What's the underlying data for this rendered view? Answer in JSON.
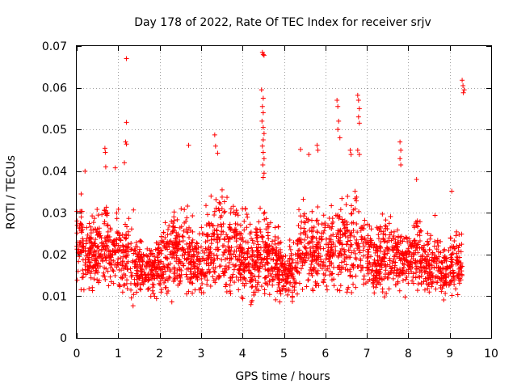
{
  "chart_data": {
    "type": "scatter",
    "title": "Day 178 of 2022, Rate Of TEC Index for receiver srjv",
    "xlabel": "GPS time / hours",
    "ylabel": "ROTI / TECUs",
    "xlim": [
      0,
      10
    ],
    "ylim": [
      0,
      0.07
    ],
    "xticks": [
      0,
      1,
      2,
      3,
      4,
      5,
      6,
      7,
      8,
      9,
      10
    ],
    "yticks": [
      0,
      0.01,
      0.02,
      0.03,
      0.04,
      0.05,
      0.06,
      0.07
    ],
    "xtick_labels": [
      "0",
      "1",
      "2",
      "3",
      "4",
      "5",
      "6",
      "7",
      "8",
      "9",
      "10"
    ],
    "ytick_labels": [
      "0",
      "0.01",
      "0.02",
      "0.03",
      "0.04",
      "0.05",
      "0.06",
      "0.07"
    ],
    "grid": true,
    "marker": "plus",
    "color": "#ff0000",
    "envelope": [
      [
        0.0,
        0.012,
        0.036
      ],
      [
        0.1,
        0.011,
        0.04
      ],
      [
        0.2,
        0.01,
        0.03
      ],
      [
        0.3,
        0.009,
        0.031
      ],
      [
        0.4,
        0.009,
        0.034
      ],
      [
        0.5,
        0.01,
        0.033
      ],
      [
        0.6,
        0.01,
        0.035
      ],
      [
        0.7,
        0.01,
        0.041
      ],
      [
        0.8,
        0.01,
        0.03
      ],
      [
        0.9,
        0.01,
        0.033
      ],
      [
        1.0,
        0.009,
        0.034
      ],
      [
        1.1,
        0.009,
        0.031
      ],
      [
        1.2,
        0.009,
        0.032
      ],
      [
        1.3,
        0.005,
        0.032
      ],
      [
        1.4,
        0.006,
        0.034
      ],
      [
        1.5,
        0.009,
        0.027
      ],
      [
        1.6,
        0.008,
        0.024
      ],
      [
        1.7,
        0.009,
        0.025
      ],
      [
        1.8,
        0.008,
        0.026
      ],
      [
        1.9,
        0.008,
        0.027
      ],
      [
        2.0,
        0.008,
        0.032
      ],
      [
        2.1,
        0.008,
        0.03
      ],
      [
        2.2,
        0.008,
        0.034
      ],
      [
        2.3,
        0.008,
        0.036
      ],
      [
        2.4,
        0.008,
        0.034
      ],
      [
        2.5,
        0.008,
        0.035
      ],
      [
        2.6,
        0.009,
        0.037
      ],
      [
        2.7,
        0.008,
        0.038
      ],
      [
        2.8,
        0.009,
        0.03
      ],
      [
        2.9,
        0.008,
        0.029
      ],
      [
        3.0,
        0.008,
        0.03
      ],
      [
        3.1,
        0.008,
        0.033
      ],
      [
        3.2,
        0.008,
        0.035
      ],
      [
        3.3,
        0.008,
        0.04
      ],
      [
        3.4,
        0.008,
        0.039
      ],
      [
        3.5,
        0.008,
        0.038
      ],
      [
        3.6,
        0.007,
        0.036
      ],
      [
        3.7,
        0.008,
        0.037
      ],
      [
        3.8,
        0.008,
        0.038
      ],
      [
        3.9,
        0.008,
        0.036
      ],
      [
        4.0,
        0.007,
        0.036
      ],
      [
        4.1,
        0.007,
        0.034
      ],
      [
        4.2,
        0.006,
        0.033
      ],
      [
        4.3,
        0.007,
        0.031
      ],
      [
        4.4,
        0.008,
        0.034
      ],
      [
        4.5,
        0.008,
        0.04
      ],
      [
        4.6,
        0.008,
        0.034
      ],
      [
        4.7,
        0.008,
        0.03
      ],
      [
        4.8,
        0.008,
        0.03
      ],
      [
        4.9,
        0.008,
        0.028
      ],
      [
        5.0,
        0.008,
        0.026
      ],
      [
        5.1,
        0.008,
        0.025
      ],
      [
        5.2,
        0.008,
        0.028
      ],
      [
        5.3,
        0.007,
        0.03
      ],
      [
        5.4,
        0.008,
        0.038
      ],
      [
        5.5,
        0.008,
        0.037
      ],
      [
        5.6,
        0.008,
        0.036
      ],
      [
        5.7,
        0.008,
        0.033
      ],
      [
        5.8,
        0.009,
        0.034
      ],
      [
        5.9,
        0.008,
        0.034
      ],
      [
        6.0,
        0.008,
        0.033
      ],
      [
        6.1,
        0.007,
        0.034
      ],
      [
        6.2,
        0.008,
        0.04
      ],
      [
        6.3,
        0.008,
        0.043
      ],
      [
        6.4,
        0.008,
        0.04
      ],
      [
        6.5,
        0.007,
        0.041
      ],
      [
        6.6,
        0.008,
        0.04
      ],
      [
        6.7,
        0.008,
        0.037
      ],
      [
        6.8,
        0.008,
        0.04
      ],
      [
        6.9,
        0.008,
        0.034
      ],
      [
        7.0,
        0.008,
        0.036
      ],
      [
        7.1,
        0.008,
        0.032
      ],
      [
        7.2,
        0.008,
        0.03
      ],
      [
        7.3,
        0.008,
        0.032
      ],
      [
        7.4,
        0.008,
        0.034
      ],
      [
        7.5,
        0.008,
        0.034
      ],
      [
        7.6,
        0.008,
        0.032
      ],
      [
        7.7,
        0.008,
        0.03
      ],
      [
        7.8,
        0.008,
        0.033
      ],
      [
        7.9,
        0.009,
        0.03
      ],
      [
        8.0,
        0.009,
        0.028
      ],
      [
        8.1,
        0.009,
        0.03
      ],
      [
        8.2,
        0.009,
        0.037
      ],
      [
        8.3,
        0.009,
        0.03
      ],
      [
        8.4,
        0.009,
        0.028
      ],
      [
        8.5,
        0.009,
        0.027
      ],
      [
        8.6,
        0.009,
        0.03
      ],
      [
        8.7,
        0.008,
        0.031
      ],
      [
        8.8,
        0.009,
        0.026
      ],
      [
        8.9,
        0.008,
        0.024
      ],
      [
        9.0,
        0.008,
        0.025
      ],
      [
        9.1,
        0.008,
        0.035
      ],
      [
        9.2,
        0.007,
        0.03
      ],
      [
        9.3,
        0.006,
        0.029
      ]
    ],
    "outliers": [
      [
        1.2,
        0.067
      ],
      [
        1.2,
        0.0517
      ],
      [
        1.18,
        0.047
      ],
      [
        1.2,
        0.0465
      ],
      [
        0.68,
        0.0455
      ],
      [
        0.69,
        0.0445
      ],
      [
        0.7,
        0.041
      ],
      [
        0.93,
        0.0408
      ],
      [
        0.2,
        0.04
      ],
      [
        1.15,
        0.042
      ],
      [
        2.7,
        0.0462
      ],
      [
        3.33,
        0.0487
      ],
      [
        3.35,
        0.046
      ],
      [
        3.4,
        0.0443
      ],
      [
        4.48,
        0.0685
      ],
      [
        4.52,
        0.0678
      ],
      [
        4.5,
        0.068
      ],
      [
        4.46,
        0.0595
      ],
      [
        4.5,
        0.0575
      ],
      [
        4.48,
        0.0555
      ],
      [
        4.5,
        0.054
      ],
      [
        4.47,
        0.052
      ],
      [
        4.5,
        0.0505
      ],
      [
        4.52,
        0.049
      ],
      [
        4.5,
        0.0475
      ],
      [
        4.48,
        0.046
      ],
      [
        4.5,
        0.0445
      ],
      [
        4.52,
        0.043
      ],
      [
        4.49,
        0.0415
      ],
      [
        5.4,
        0.0452
      ],
      [
        5.6,
        0.044
      ],
      [
        5.8,
        0.0462
      ],
      [
        5.82,
        0.045
      ],
      [
        6.28,
        0.057
      ],
      [
        6.3,
        0.0555
      ],
      [
        6.32,
        0.052
      ],
      [
        6.3,
        0.05
      ],
      [
        6.35,
        0.048
      ],
      [
        6.6,
        0.045
      ],
      [
        6.62,
        0.044
      ],
      [
        6.78,
        0.0582
      ],
      [
        6.8,
        0.057
      ],
      [
        6.82,
        0.055
      ],
      [
        6.8,
        0.053
      ],
      [
        6.82,
        0.0515
      ],
      [
        6.78,
        0.045
      ],
      [
        6.82,
        0.044
      ],
      [
        7.8,
        0.047
      ],
      [
        7.82,
        0.045
      ],
      [
        7.8,
        0.043
      ],
      [
        7.82,
        0.0415
      ],
      [
        9.3,
        0.0618
      ],
      [
        9.32,
        0.0605
      ],
      [
        9.35,
        0.0595
      ],
      [
        9.33,
        0.0588
      ],
      [
        9.05,
        0.0352
      ],
      [
        8.2,
        0.038
      ],
      [
        4.5,
        0.0385
      ],
      [
        4.52,
        0.0395
      ]
    ]
  }
}
